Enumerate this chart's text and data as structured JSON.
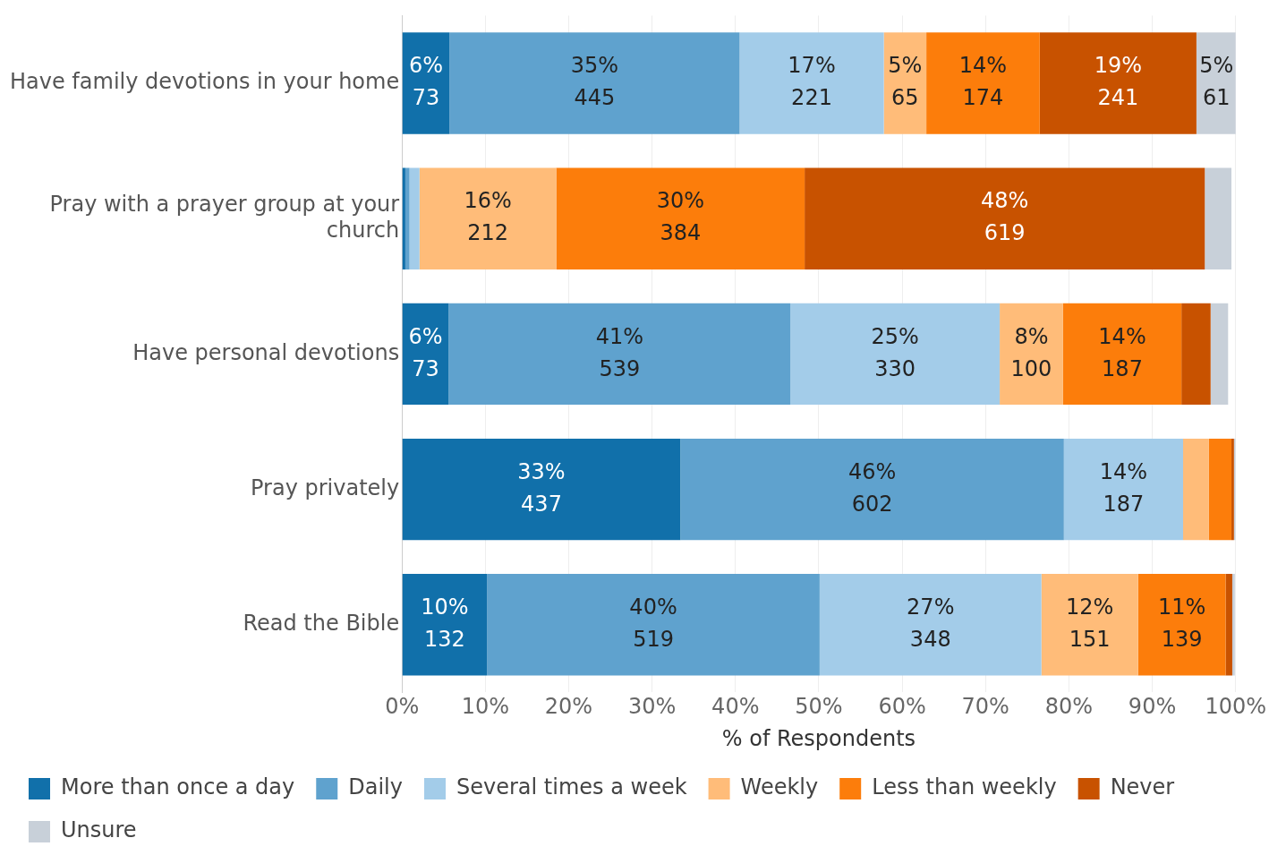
{
  "chart_data": {
    "type": "bar",
    "orientation": "horizontal",
    "stacked": true,
    "xlabel": "% of Respondents",
    "categories": [
      "Have family devotions in your home",
      "Pray with a prayer group at your church",
      "Have personal devotions",
      "Pray privately",
      "Read the Bible"
    ],
    "series": [
      {
        "name": "More than once a day",
        "color": "#1170aa",
        "values": [
          5.7,
          0.4,
          5.6,
          33.4,
          10.2
        ],
        "value_labels": [
          "6%\n73",
          null,
          "6%\n73",
          "33%\n437",
          "10%\n132"
        ]
      },
      {
        "name": "Daily",
        "color": "#5fa2ce",
        "values": [
          34.8,
          0.5,
          41.0,
          46.0,
          39.9
        ],
        "value_labels": [
          "35%\n445",
          null,
          "41%\n539",
          "46%\n602",
          "40%\n519"
        ]
      },
      {
        "name": "Several times a week",
        "color": "#a3cce9",
        "values": [
          17.3,
          1.2,
          25.1,
          14.3,
          26.6
        ],
        "value_labels": [
          "17%\n221",
          null,
          "25%\n330",
          "14%\n187",
          "27%\n348"
        ]
      },
      {
        "name": "Weekly",
        "color": "#ffbc79",
        "values": [
          5.1,
          16.4,
          7.6,
          3.1,
          11.6
        ],
        "value_labels": [
          "5%\n65",
          "16%\n212",
          "8%\n100",
          null,
          "12%\n151"
        ]
      },
      {
        "name": "Less than weekly",
        "color": "#fc7d0b",
        "values": [
          13.6,
          29.8,
          14.2,
          2.7,
          10.5
        ],
        "value_labels": [
          "14%\n174",
          "30%\n384",
          "14%\n187",
          null,
          "11%\n139"
        ]
      },
      {
        "name": "Never",
        "color": "#c85200",
        "values": [
          18.8,
          48.0,
          3.5,
          0.3,
          0.8
        ],
        "value_labels": [
          "19%\n241",
          "48%\n619",
          null,
          null,
          null
        ]
      },
      {
        "name": "Unsure",
        "color": "#c8d0d9",
        "values": [
          4.8,
          3.2,
          2.1,
          0.2,
          0.3
        ],
        "value_labels": [
          "5%\n61",
          null,
          null,
          null,
          null
        ]
      }
    ],
    "xlim": [
      0,
      100
    ],
    "xticks": [
      {
        "value": 0,
        "label": "0%"
      },
      {
        "value": 10,
        "label": "10%"
      },
      {
        "value": 20,
        "label": "20%"
      },
      {
        "value": 30,
        "label": "30%"
      },
      {
        "value": 40,
        "label": "40%"
      },
      {
        "value": 50,
        "label": "50%"
      },
      {
        "value": 60,
        "label": "60%"
      },
      {
        "value": 70,
        "label": "70%"
      },
      {
        "value": 80,
        "label": "80%"
      },
      {
        "value": 90,
        "label": "90%"
      },
      {
        "value": 100,
        "label": "100%"
      }
    ],
    "grid": "x",
    "legend": "bottom"
  }
}
